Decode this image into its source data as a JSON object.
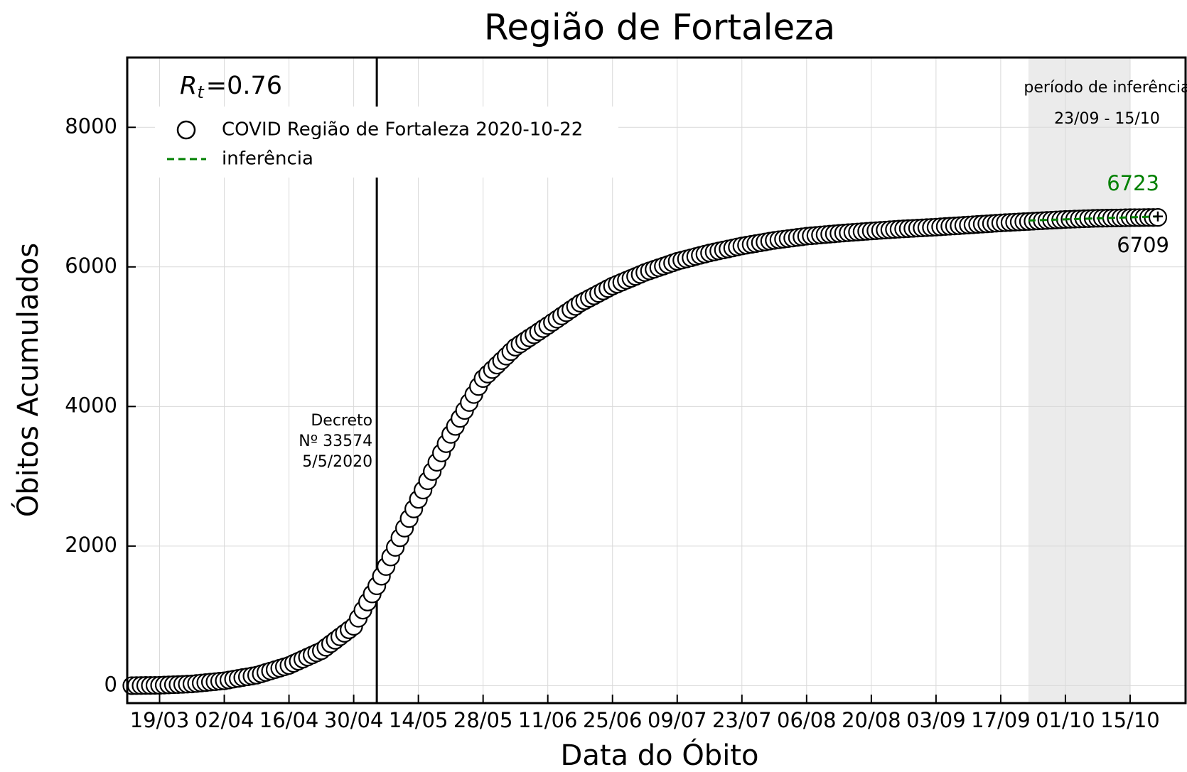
{
  "chart_data": {
    "type": "scatter",
    "title": "Região de Fortaleza",
    "xlabel": "Data do Óbito",
    "ylabel": "Óbitos Acumulados",
    "xlim": [
      "12/03",
      "27/10"
    ],
    "xticks": [
      "19/03",
      "02/04",
      "16/04",
      "30/04",
      "14/05",
      "28/05",
      "11/06",
      "25/06",
      "09/07",
      "23/07",
      "06/08",
      "20/08",
      "03/09",
      "17/09",
      "01/10",
      "15/10"
    ],
    "ylim": [
      -250,
      9000
    ],
    "yticks": [
      0,
      2000,
      4000,
      6000,
      8000
    ],
    "grid": true,
    "legend": "upper left",
    "rt": {
      "symbol": "R",
      "subscript": "t",
      "relation": "=",
      "value": 0.76
    },
    "vline": {
      "x": "05/05",
      "color": "#000000",
      "lines": [
        "Decreto",
        "Nº 33574",
        "5/5/2020"
      ]
    },
    "shade": {
      "x": [
        "23/09",
        "15/10"
      ],
      "color": "#ebebeb",
      "label": "período de inferência",
      "range_label": "23/09 - 15/10"
    },
    "series": [
      {
        "name": "COVID Região de Fortaleza 2020-10-22",
        "color": "#000000",
        "marker": "circle",
        "x": [
          "13/03",
          "14/03",
          "15/03",
          "16/03",
          "17/03",
          "18/03",
          "19/03",
          "20/03",
          "21/03",
          "22/03",
          "23/03",
          "24/03",
          "25/03",
          "26/03",
          "27/03",
          "28/03",
          "29/03",
          "30/03",
          "31/03",
          "01/04",
          "02/04",
          "03/04",
          "04/04",
          "05/04",
          "06/04",
          "07/04",
          "08/04",
          "09/04",
          "10/04",
          "11/04",
          "12/04",
          "13/04",
          "14/04",
          "15/04",
          "16/04",
          "17/04",
          "18/04",
          "19/04",
          "20/04",
          "21/04",
          "22/04",
          "23/04",
          "24/04",
          "25/04",
          "26/04",
          "27/04",
          "28/04",
          "29/04",
          "30/04",
          "01/05",
          "02/05",
          "03/05",
          "04/05",
          "05/05",
          "06/05",
          "07/05",
          "08/05",
          "09/05",
          "10/05",
          "11/05",
          "12/05",
          "13/05",
          "14/05",
          "15/05",
          "16/05",
          "17/05",
          "18/05",
          "19/05",
          "20/05",
          "21/05",
          "22/05",
          "23/05",
          "24/05",
          "25/05",
          "26/05",
          "27/05",
          "28/05",
          "29/05",
          "30/05",
          "31/05",
          "01/06",
          "02/06",
          "03/06",
          "04/06",
          "05/06",
          "06/06",
          "07/06",
          "08/06",
          "09/06",
          "10/06",
          "11/06",
          "12/06",
          "13/06",
          "14/06",
          "15/06",
          "16/06",
          "17/06",
          "18/06",
          "19/06",
          "20/06",
          "21/06",
          "22/06",
          "23/06",
          "24/06",
          "25/06",
          "26/06",
          "27/06",
          "28/06",
          "29/06",
          "30/06",
          "01/07",
          "02/07",
          "03/07",
          "04/07",
          "05/07",
          "06/07",
          "07/07",
          "08/07",
          "09/07",
          "10/07",
          "11/07",
          "12/07",
          "13/07",
          "14/07",
          "15/07",
          "16/07",
          "17/07",
          "18/07",
          "19/07",
          "20/07",
          "21/07",
          "22/07",
          "23/07",
          "24/07",
          "25/07",
          "26/07",
          "27/07",
          "28/07",
          "29/07",
          "30/07",
          "31/07",
          "01/08",
          "02/08",
          "03/08",
          "04/08",
          "05/08",
          "06/08",
          "07/08",
          "08/08",
          "09/08",
          "10/08",
          "11/08",
          "12/08",
          "13/08",
          "14/08",
          "15/08",
          "16/08",
          "17/08",
          "18/08",
          "19/08",
          "20/08",
          "21/08",
          "22/08",
          "23/08",
          "24/08",
          "25/08",
          "26/08",
          "27/08",
          "28/08",
          "29/08",
          "30/08",
          "31/08",
          "01/09",
          "02/09",
          "03/09",
          "04/09",
          "05/09",
          "06/09",
          "07/09",
          "08/09",
          "09/09",
          "10/09",
          "11/09",
          "12/09",
          "13/09",
          "14/09",
          "15/09",
          "16/09",
          "17/09",
          "18/09",
          "19/09",
          "20/09",
          "21/09",
          "22/09",
          "23/09",
          "24/09",
          "25/09",
          "26/09",
          "27/09",
          "28/09",
          "29/09",
          "30/09",
          "01/10",
          "02/10",
          "03/10",
          "04/10",
          "05/10",
          "06/10",
          "07/10",
          "08/10",
          "09/10",
          "10/10",
          "11/10",
          "12/10",
          "13/10",
          "14/10",
          "15/10",
          "16/10",
          "17/10",
          "18/10",
          "19/10",
          "20/10",
          "21/10"
        ],
        "values": [
          0,
          1,
          2,
          3,
          3,
          4,
          5,
          8,
          11,
          14,
          16,
          19,
          22,
          25,
          31,
          38,
          44,
          51,
          57,
          64,
          70,
          81,
          93,
          104,
          116,
          127,
          139,
          150,
          170,
          190,
          210,
          230,
          250,
          270,
          290,
          320,
          350,
          380,
          410,
          440,
          470,
          500,
          550,
          600,
          650,
          700,
          750,
          800,
          850,
          966,
          1082,
          1198,
          1314,
          1430,
          1568,
          1706,
          1843,
          1981,
          2119,
          2257,
          2394,
          2532,
          2670,
          2803,
          2936,
          3069,
          3201,
          3334,
          3467,
          3600,
          3714,
          3829,
          3943,
          4057,
          4171,
          4286,
          4400,
          4464,
          4529,
          4593,
          4657,
          4721,
          4786,
          4850,
          4894,
          4939,
          4983,
          5027,
          5071,
          5116,
          5160,
          5206,
          5251,
          5297,
          5343,
          5389,
          5434,
          5480,
          5515,
          5550,
          5585,
          5620,
          5655,
          5690,
          5725,
          5753,
          5781,
          5809,
          5836,
          5864,
          5892,
          5920,
          5943,
          5966,
          5989,
          6011,
          6034,
          6057,
          6080,
          6097,
          6114,
          6131,
          6149,
          6166,
          6183,
          6200,
          6214,
          6229,
          6243,
          6257,
          6271,
          6286,
          6300,
          6311,
          6323,
          6334,
          6346,
          6357,
          6369,
          6380,
          6389,
          6397,
          6406,
          6414,
          6423,
          6431,
          6440,
          6446,
          6451,
          6457,
          6463,
          6469,
          6474,
          6480,
          6485,
          6490,
          6495,
          6500,
          6505,
          6510,
          6515,
          6519,
          6524,
          6528,
          6532,
          6536,
          6541,
          6545,
          6549,
          6552,
          6556,
          6559,
          6563,
          6566,
          6570,
          6574,
          6579,
          6583,
          6587,
          6591,
          6596,
          6600,
          6604,
          6609,
          6613,
          6617,
          6621,
          6626,
          6630,
          6634,
          6637,
          6641,
          6644,
          6648,
          6651,
          6655,
          6659,
          6662,
          6666,
          6669,
          6673,
          6676,
          6680,
          6682,
          6685,
          6687,
          6690,
          6692,
          6695,
          6697,
          6698,
          6699,
          6700,
          6701,
          6702,
          6704,
          6705,
          6706,
          6706,
          6707,
          6708,
          6708,
          6709
        ]
      },
      {
        "name": "inferência",
        "color": "#008000",
        "linestyle": "dashed",
        "marker": "plus",
        "x": [
          "23/09",
          "21/10"
        ],
        "values": [
          6665,
          6723
        ]
      }
    ]
  }
}
